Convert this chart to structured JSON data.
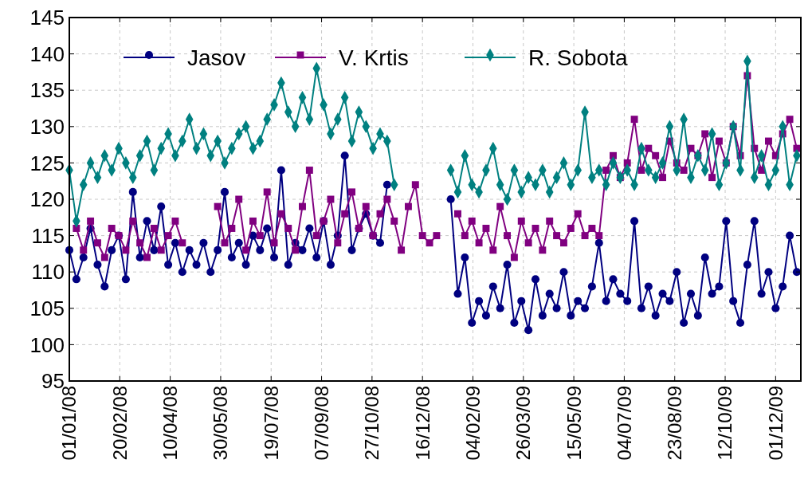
{
  "chart_data": {
    "type": "line",
    "xlim": [
      "2008-01-01",
      "2009-12-26"
    ],
    "ylim": [
      95,
      145
    ],
    "yticks": [
      95,
      100,
      105,
      110,
      115,
      120,
      125,
      130,
      135,
      140,
      145
    ],
    "xticks": [
      {
        "value": "2008-01-01",
        "label": "01/01/08"
      },
      {
        "value": "2008-02-20",
        "label": "20/02/08"
      },
      {
        "value": "2008-04-10",
        "label": "10/04/08"
      },
      {
        "value": "2008-05-30",
        "label": "30/05/08"
      },
      {
        "value": "2008-07-19",
        "label": "19/07/08"
      },
      {
        "value": "2008-09-07",
        "label": "07/09/08"
      },
      {
        "value": "2008-10-27",
        "label": "27/10/08"
      },
      {
        "value": "2008-12-16",
        "label": "16/12/08"
      },
      {
        "value": "2009-02-04",
        "label": "04/02/09"
      },
      {
        "value": "2009-03-26",
        "label": "26/03/09"
      },
      {
        "value": "2009-05-15",
        "label": "15/05/09"
      },
      {
        "value": "2009-07-04",
        "label": "04/07/09"
      },
      {
        "value": "2009-08-23",
        "label": "23/08/09"
      },
      {
        "value": "2009-10-12",
        "label": "12/10/09"
      },
      {
        "value": "2009-12-01",
        "label": "01/12/09"
      }
    ],
    "x": [
      "2008-01-01",
      "2008-01-08",
      "2008-01-15",
      "2008-01-22",
      "2008-01-29",
      "2008-02-05",
      "2008-02-12",
      "2008-02-19",
      "2008-02-26",
      "2008-03-04",
      "2008-03-11",
      "2008-03-18",
      "2008-03-25",
      "2008-04-01",
      "2008-04-08",
      "2008-04-15",
      "2008-04-22",
      "2008-04-29",
      "2008-05-06",
      "2008-05-13",
      "2008-05-20",
      "2008-05-27",
      "2008-06-03",
      "2008-06-10",
      "2008-06-17",
      "2008-06-24",
      "2008-07-01",
      "2008-07-08",
      "2008-07-15",
      "2008-07-22",
      "2008-07-29",
      "2008-08-05",
      "2008-08-12",
      "2008-08-19",
      "2008-08-26",
      "2008-09-02",
      "2008-09-09",
      "2008-09-16",
      "2008-09-23",
      "2008-09-30",
      "2008-10-07",
      "2008-10-14",
      "2008-10-21",
      "2008-10-28",
      "2008-11-04",
      "2008-11-11",
      "2008-11-18",
      "2008-11-25",
      "2008-12-02",
      "2008-12-09",
      "2008-12-16",
      "2008-12-23",
      "2008-12-30",
      "2009-01-06",
      "2009-01-13",
      "2009-01-20",
      "2009-01-27",
      "2009-02-03",
      "2009-02-10",
      "2009-02-17",
      "2009-02-24",
      "2009-03-03",
      "2009-03-10",
      "2009-03-17",
      "2009-03-24",
      "2009-03-31",
      "2009-04-07",
      "2009-04-14",
      "2009-04-21",
      "2009-04-28",
      "2009-05-05",
      "2009-05-12",
      "2009-05-19",
      "2009-05-26",
      "2009-06-02",
      "2009-06-09",
      "2009-06-16",
      "2009-06-23",
      "2009-06-30",
      "2009-07-07",
      "2009-07-14",
      "2009-07-21",
      "2009-07-28",
      "2009-08-04",
      "2009-08-11",
      "2009-08-18",
      "2009-08-25",
      "2009-09-01",
      "2009-09-08",
      "2009-09-15",
      "2009-09-22",
      "2009-09-29",
      "2009-10-06",
      "2009-10-13",
      "2009-10-20",
      "2009-10-27",
      "2009-11-03",
      "2009-11-10",
      "2009-11-17",
      "2009-11-24",
      "2009-12-01",
      "2009-12-08",
      "2009-12-15",
      "2009-12-22"
    ],
    "series": [
      {
        "name": "Jasov",
        "color": "#000080",
        "marker": "circle",
        "values": [
          113,
          109,
          112,
          116,
          111,
          108,
          113,
          115,
          109,
          121,
          112,
          117,
          113,
          119,
          111,
          114,
          110,
          113,
          111,
          114,
          110,
          113,
          121,
          112,
          114,
          111,
          115,
          113,
          116,
          112,
          124,
          111,
          114,
          113,
          116,
          112,
          117,
          111,
          115,
          126,
          113,
          116,
          118,
          115,
          114,
          122,
          null,
          null,
          null,
          null,
          null,
          null,
          null,
          null,
          120,
          107,
          112,
          103,
          106,
          104,
          108,
          105,
          111,
          103,
          106,
          102,
          109,
          104,
          107,
          105,
          110,
          104,
          106,
          105,
          108,
          114,
          106,
          109,
          107,
          106,
          117,
          105,
          108,
          104,
          107,
          106,
          110,
          103,
          107,
          104,
          112,
          107,
          108,
          117,
          106,
          103,
          111,
          117,
          107,
          110,
          105,
          108,
          115,
          110
        ]
      },
      {
        "name": "V. Krtis",
        "color": "#800080",
        "marker": "square",
        "values": [
          null,
          116,
          113,
          117,
          114,
          112,
          116,
          115,
          113,
          117,
          114,
          112,
          116,
          113,
          115,
          117,
          114,
          null,
          null,
          null,
          null,
          119,
          114,
          116,
          120,
          113,
          117,
          115,
          121,
          114,
          118,
          116,
          113,
          119,
          124,
          115,
          117,
          120,
          114,
          118,
          121,
          116,
          119,
          115,
          118,
          120,
          117,
          113,
          119,
          122,
          115,
          114,
          115,
          null,
          null,
          118,
          115,
          117,
          114,
          116,
          113,
          119,
          115,
          112,
          117,
          114,
          116,
          113,
          117,
          115,
          114,
          116,
          118,
          115,
          116,
          115,
          124,
          126,
          123,
          125,
          131,
          124,
          127,
          126,
          123,
          128,
          125,
          124,
          127,
          126,
          129,
          123,
          128,
          125,
          130,
          126,
          137,
          127,
          124,
          128,
          126,
          129,
          131,
          127
        ]
      },
      {
        "name": "R. Sobota",
        "color": "#008080",
        "marker": "diamond",
        "values": [
          124,
          117,
          122,
          125,
          123,
          126,
          124,
          127,
          125,
          123,
          126,
          128,
          124,
          127,
          129,
          126,
          128,
          131,
          127,
          129,
          126,
          128,
          125,
          127,
          129,
          130,
          127,
          128,
          131,
          133,
          136,
          132,
          130,
          134,
          131,
          138,
          133,
          129,
          131,
          134,
          128,
          132,
          130,
          127,
          129,
          128,
          122,
          null,
          null,
          null,
          null,
          null,
          null,
          null,
          124,
          121,
          126,
          122,
          121,
          124,
          127,
          122,
          120,
          124,
          121,
          123,
          122,
          124,
          121,
          123,
          125,
          122,
          124,
          132,
          123,
          124,
          122,
          125,
          123,
          124,
          122,
          127,
          124,
          123,
          125,
          130,
          124,
          131,
          123,
          126,
          124,
          129,
          122,
          125,
          130,
          124,
          139,
          123,
          126,
          122,
          124,
          130,
          122,
          126
        ]
      }
    ],
    "grid": true,
    "legend": "top",
    "line_style": "solid"
  }
}
